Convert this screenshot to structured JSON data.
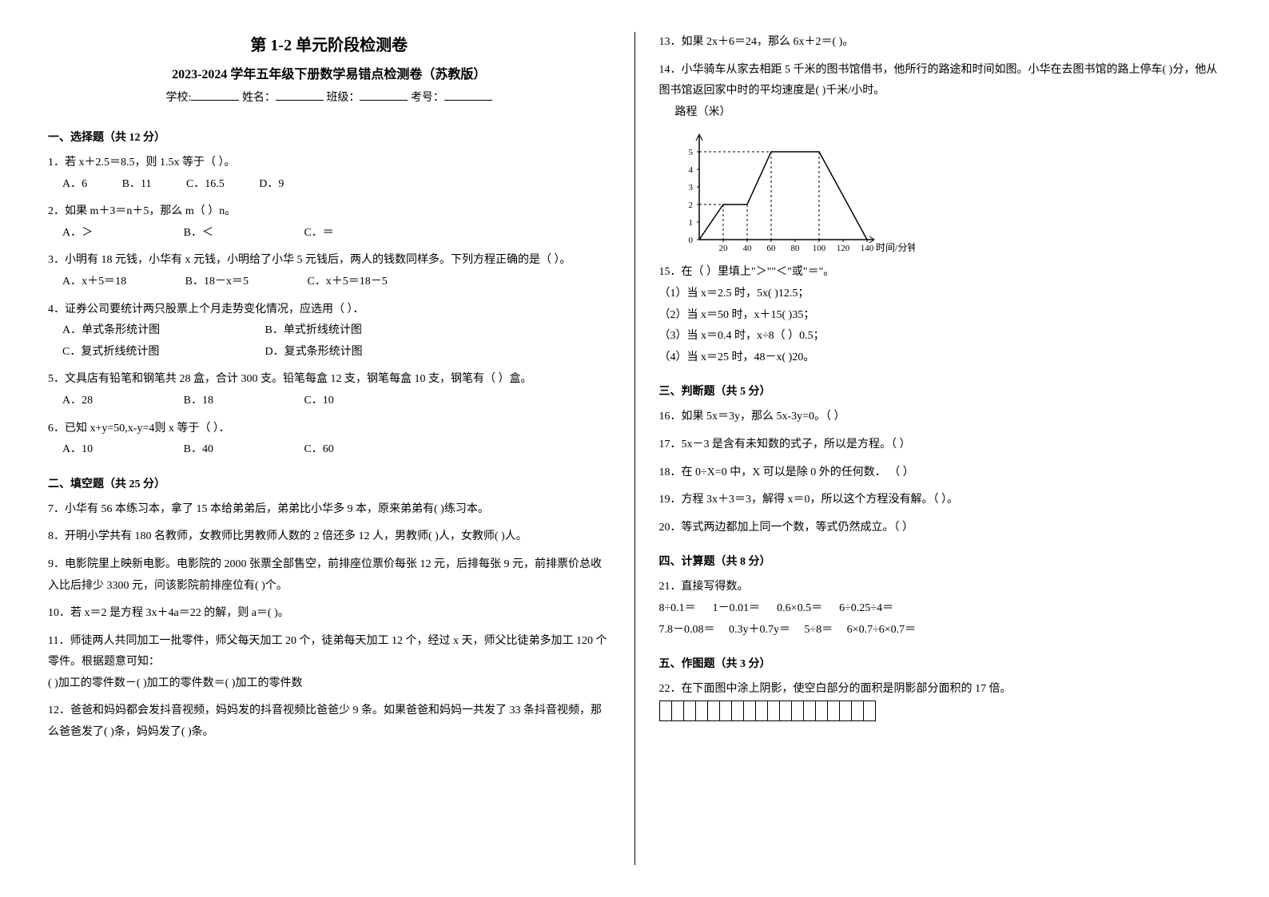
{
  "header": {
    "title": "第 1-2 单元阶段检测卷",
    "subtitle": "2023-2024 学年五年级下册数学易错点检测卷（苏教版）",
    "school_label": "学校:",
    "name_label": "姓名：",
    "class_label": "班级：",
    "exam_no_label": "考号：",
    "underline": "___________"
  },
  "sections": {
    "s1": "一、选择题（共 12 分）",
    "s2": "二、填空题（共 25 分）",
    "s3": "三、判断题（共 5 分）",
    "s4": "四、计算题（共 8 分）",
    "s5": "五、作图题（共 3 分）"
  },
  "q1": {
    "stem": "1．若 x＋2.5＝8.5，则 1.5x 等于（   ）。",
    "A": "A．6",
    "B": "B．11",
    "C": "C．16.5",
    "D": "D．9"
  },
  "q2": {
    "stem": "2．如果 m＋3＝n＋5，那么 m（   ）n。",
    "A": "A．＞",
    "B": "B．＜",
    "C": "C．＝"
  },
  "q3": {
    "stem": "3．小明有 18 元钱，小华有 x 元钱，小明给了小华 5 元钱后，两人的钱数同样多。下列方程正确的是（   ）。",
    "A": "A．x＋5＝18",
    "B": "B．18－x＝5",
    "C": "C．x＋5＝18－5"
  },
  "q4": {
    "stem": "4．证券公司要统计两只股票上个月走势变化情况，应选用（  ）．",
    "A": "A．单式条形统计图",
    "B": "B．单式折线统计图",
    "C": "C．复式折线统计图",
    "D": "D．复式条形统计图"
  },
  "q5": {
    "stem": "5．文具店有铅笔和钢笔共 28 盒，合计 300 支。铅笔每盒 12 支，钢笔每盒 10 支，钢笔有（   ）盒。",
    "A": "A．28",
    "B": "B．18",
    "C": "C．10"
  },
  "q6": {
    "stem": "6．已知 x+y=50,x-y=4则 x 等于（   ）．",
    "A": "A．10",
    "B": "B．40",
    "C": "C．60"
  },
  "q7": "7．小华有 56 本练习本，拿了 15 本给弟弟后，弟弟比小华多 9 本，原来弟弟有(          )练习本。",
  "q8": "8．开明小学共有 180 名教师，女教师比男教师人数的 2 倍还多 12 人，男教师(               )人，女教师(               )人。",
  "q9": "9．电影院里上映新电影。电影院的 2000 张票全部售空，前排座位票价每张 12 元，后排每张 9 元，前排票价总收入比后排少 3300 元，问该影院前排座位有(            )个。",
  "q10": "10．若 x＝2 是方程 3x＋4a＝22 的解，则 a＝(          )。",
  "q11": {
    "stem": "11．师徒两人共同加工一批零件，师父每天加工 20 个，徒弟每天加工 12 个，经过 x 天，师父比徒弟多加工 120 个零件。根据题意可知：",
    "line2": "(          )加工的零件数－(          )加工的零件数＝(          )加工的零件数"
  },
  "q12": "12．爸爸和妈妈都会发抖音视频，妈妈发的抖音视频比爸爸少 9 条。如果爸爸和妈妈一共发了 33 条抖音视频，那么爸爸发了(            )条，妈妈发了(            )条。",
  "q13": "13．如果 2x＋6＝24，那么 6x＋2＝(            )。",
  "q14": {
    "stem": "14．小华骑车从家去相距 5 千米的图书馆借书，他所行的路途和时间如图。小华在去图书馆的路上停车(            )分，他从图书馆返回家中时的平均速度是(          )千米/小时。",
    "ylabel": "路程（米）",
    "xlabel": "时间/分钟",
    "yticks": [
      "0",
      "1",
      "2",
      "3",
      "4",
      "5"
    ],
    "xticks": [
      "20",
      "40",
      "60",
      "80",
      "100",
      "120",
      "140"
    ],
    "points": [
      [
        0,
        0
      ],
      [
        20,
        2
      ],
      [
        40,
        2
      ],
      [
        60,
        5
      ],
      [
        100,
        5
      ],
      [
        140,
        0
      ]
    ]
  },
  "q15": {
    "stem": "15．在（  ）里填上\"＞\"\"＜\"或\"＝\"。",
    "a": "（1）当 x＝2.5 时，5x(            )12.5；",
    "b": "（2）当 x＝50 时，x＋15(            )35；",
    "c": "（3）当 x＝0.4 时，x÷8（          ）0.5；",
    "d": "（4）当 x＝25 时，48－x(            )20。"
  },
  "q16": "16．如果 5x＝3y，那么 5x-3y=0。（       ）",
  "q17": "17．5x－3 是含有未知数的式子，所以是方程。（         ）",
  "q18": "18．在 0÷X=0 中，X 可以是除 0 外的任何数．  （     ）",
  "q19": "19．方程 3x＋3＝3，解得 x＝0，所以这个方程没有解。（        ）。",
  "q20": "20．等式两边都加上同一个数，等式仍然成立。（        ）",
  "q21": {
    "stem": "21．直接写得数。",
    "row1": "8÷0.1＝      1－0.01＝      0.6×0.5＝      6÷0.25÷4＝",
    "row2": "7.8－0.08＝     0.3y＋0.7y＝     5÷8＝     6×0.7÷6×0.7＝"
  },
  "q22": {
    "stem": "22．在下面图中涂上阴影，使空白部分的面积是阴影部分面积的 17 倍。",
    "cols": 18
  }
}
